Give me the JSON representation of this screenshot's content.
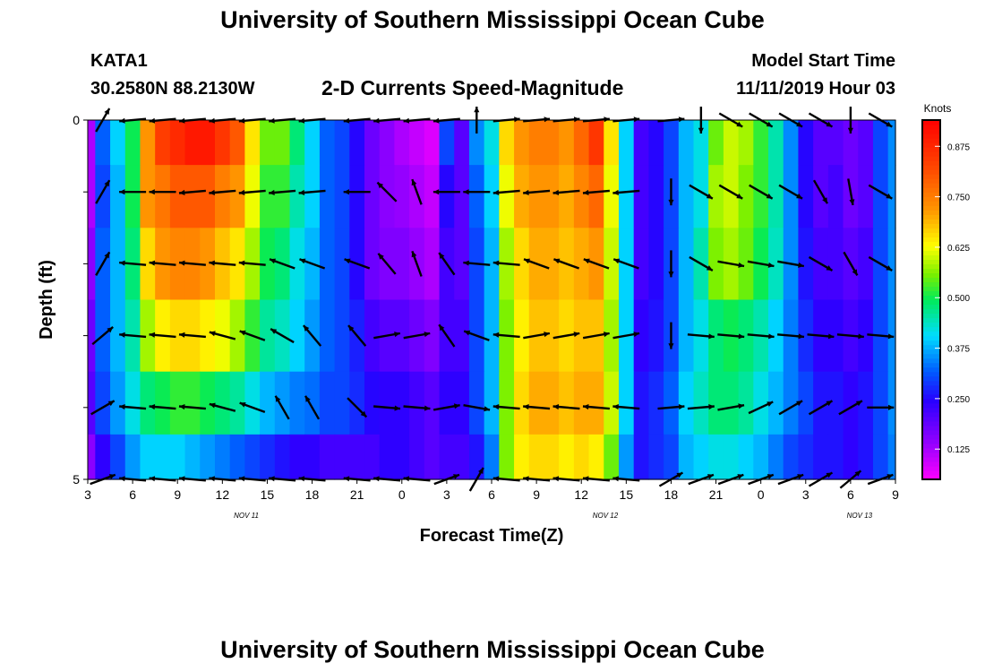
{
  "page": {
    "title_top": "University of Southern Mississippi Ocean Cube",
    "title_bottom": "University of Southern Mississippi Ocean Cube",
    "station_id": "KATA1",
    "station_coords": "30.2580N 88.2130W",
    "plot_title": "2-D Currents Speed-Magnitude",
    "model_start_label": "Model Start Time",
    "model_start_value": "11/11/2019 Hour 03"
  },
  "chart_data": {
    "type": "heatmap",
    "title": "2-D Currents Speed-Magnitude",
    "xlabel": "Forecast Time(Z)",
    "ylabel": "Depth (ft)",
    "x_tick_labels": [
      "3",
      "6",
      "9",
      "12",
      "15",
      "18",
      "21",
      "0",
      "3",
      "6",
      "9",
      "12",
      "15",
      "18",
      "21",
      "0",
      "3",
      "6",
      "9"
    ],
    "date_labels": [
      {
        "text": "NOV 11",
        "at_hour": 10
      },
      {
        "text": "NOV 12",
        "at_hour": 34
      },
      {
        "text": "NOV 13",
        "at_hour": 51
      }
    ],
    "x_range_hours": [
      0,
      54
    ],
    "y_range_ft": [
      0,
      5
    ],
    "y_tick_labels": [
      {
        "value": 0,
        "label": "0"
      },
      {
        "value": 1,
        "label": ""
      },
      {
        "value": 2,
        "label": ""
      },
      {
        "value": 3,
        "label": ""
      },
      {
        "value": 4,
        "label": ""
      },
      {
        "value": 5,
        "label": "5"
      }
    ],
    "colorbar": {
      "label": "Knots",
      "range": [
        0.05,
        0.94
      ],
      "ticks": [
        0.125,
        0.25,
        0.375,
        0.5,
        0.625,
        0.75,
        0.875
      ],
      "tick_labels": [
        "0.125",
        "0.250",
        "0.375",
        "0.500",
        "0.625",
        "0.750",
        "0.875"
      ]
    },
    "layer_depths_ft": [
      0.25,
      1.0,
      2.0,
      3.0,
      4.0,
      4.75
    ],
    "times_hours": [
      0,
      1,
      2,
      3,
      4,
      5,
      6,
      7,
      8,
      9,
      10,
      11,
      12,
      13,
      14,
      15,
      16,
      17,
      18,
      19,
      20,
      21,
      22,
      23,
      24,
      25,
      26,
      27,
      28,
      29,
      30,
      31,
      32,
      33,
      34,
      35,
      36,
      37,
      38,
      39,
      40,
      41,
      42,
      43,
      44,
      45,
      46,
      47,
      48,
      49,
      50,
      51,
      52,
      53,
      54
    ],
    "speed_knots": [
      [
        0.12,
        0.32,
        0.4,
        0.5,
        0.72,
        0.84,
        0.87,
        0.9,
        0.9,
        0.85,
        0.8,
        0.65,
        0.55,
        0.55,
        0.48,
        0.4,
        0.32,
        0.3,
        0.25,
        0.18,
        0.15,
        0.12,
        0.1,
        0.08,
        0.3,
        0.2,
        0.35,
        0.42,
        0.66,
        0.72,
        0.75,
        0.75,
        0.72,
        0.78,
        0.85,
        0.65,
        0.4,
        0.22,
        0.25,
        0.3,
        0.38,
        0.42,
        0.55,
        0.6,
        0.58,
        0.52,
        0.45,
        0.35,
        0.25,
        0.2,
        0.2,
        0.18,
        0.2,
        0.3,
        0.35
      ],
      [
        0.12,
        0.3,
        0.38,
        0.5,
        0.72,
        0.76,
        0.8,
        0.8,
        0.8,
        0.75,
        0.72,
        0.62,
        0.52,
        0.52,
        0.45,
        0.4,
        0.32,
        0.3,
        0.25,
        0.18,
        0.15,
        0.14,
        0.12,
        0.1,
        0.25,
        0.2,
        0.32,
        0.4,
        0.62,
        0.7,
        0.72,
        0.72,
        0.7,
        0.74,
        0.78,
        0.62,
        0.4,
        0.22,
        0.25,
        0.3,
        0.38,
        0.42,
        0.58,
        0.6,
        0.56,
        0.52,
        0.45,
        0.35,
        0.25,
        0.2,
        0.22,
        0.18,
        0.2,
        0.3,
        0.35
      ],
      [
        0.15,
        0.32,
        0.38,
        0.48,
        0.66,
        0.72,
        0.74,
        0.74,
        0.72,
        0.68,
        0.65,
        0.58,
        0.5,
        0.48,
        0.42,
        0.38,
        0.32,
        0.3,
        0.25,
        0.18,
        0.16,
        0.16,
        0.14,
        0.12,
        0.22,
        0.2,
        0.3,
        0.38,
        0.58,
        0.66,
        0.7,
        0.7,
        0.68,
        0.7,
        0.72,
        0.6,
        0.4,
        0.22,
        0.25,
        0.3,
        0.38,
        0.45,
        0.56,
        0.58,
        0.55,
        0.5,
        0.44,
        0.35,
        0.26,
        0.22,
        0.22,
        0.2,
        0.22,
        0.3,
        0.35
      ],
      [
        0.18,
        0.32,
        0.38,
        0.45,
        0.58,
        0.64,
        0.66,
        0.66,
        0.64,
        0.62,
        0.58,
        0.52,
        0.46,
        0.44,
        0.4,
        0.36,
        0.32,
        0.3,
        0.27,
        0.22,
        0.2,
        0.2,
        0.18,
        0.16,
        0.22,
        0.22,
        0.3,
        0.38,
        0.56,
        0.64,
        0.68,
        0.68,
        0.66,
        0.68,
        0.68,
        0.58,
        0.4,
        0.24,
        0.26,
        0.3,
        0.38,
        0.42,
        0.48,
        0.5,
        0.48,
        0.45,
        0.4,
        0.34,
        0.28,
        0.24,
        0.24,
        0.22,
        0.24,
        0.3,
        0.35
      ],
      [
        0.2,
        0.3,
        0.36,
        0.42,
        0.48,
        0.5,
        0.52,
        0.52,
        0.5,
        0.48,
        0.46,
        0.42,
        0.38,
        0.36,
        0.34,
        0.33,
        0.3,
        0.3,
        0.28,
        0.25,
        0.24,
        0.24,
        0.22,
        0.2,
        0.24,
        0.24,
        0.3,
        0.38,
        0.56,
        0.66,
        0.7,
        0.7,
        0.68,
        0.7,
        0.7,
        0.6,
        0.4,
        0.26,
        0.28,
        0.32,
        0.4,
        0.44,
        0.48,
        0.48,
        0.46,
        0.42,
        0.38,
        0.34,
        0.3,
        0.26,
        0.26,
        0.24,
        0.26,
        0.3,
        0.35
      ],
      [
        0.15,
        0.24,
        0.3,
        0.36,
        0.4,
        0.4,
        0.4,
        0.38,
        0.36,
        0.34,
        0.32,
        0.3,
        0.28,
        0.26,
        0.24,
        0.24,
        0.22,
        0.22,
        0.22,
        0.22,
        0.24,
        0.24,
        0.22,
        0.2,
        0.22,
        0.22,
        0.26,
        0.34,
        0.56,
        0.64,
        0.66,
        0.66,
        0.64,
        0.66,
        0.64,
        0.55,
        0.36,
        0.26,
        0.28,
        0.3,
        0.38,
        0.4,
        0.42,
        0.42,
        0.4,
        0.38,
        0.34,
        0.3,
        0.28,
        0.26,
        0.26,
        0.24,
        0.26,
        0.3,
        0.34
      ]
    ],
    "vector_times_hours": [
      1,
      3,
      5,
      7,
      9,
      11,
      13,
      15,
      18,
      20,
      22,
      24,
      26,
      28,
      30,
      32,
      34,
      36,
      39,
      41,
      43,
      45,
      47,
      49,
      51,
      53
    ],
    "vector_depths_ft": [
      0,
      1,
      2,
      3,
      4,
      5
    ],
    "vector_directions_deg": [
      [
        60,
        185,
        185,
        185,
        185,
        185,
        185,
        185,
        185,
        185,
        185,
        185,
        90,
        5,
        5,
        5,
        5,
        5,
        5,
        -90,
        -30,
        -30,
        -30,
        -30,
        -90,
        -30
      ],
      [
        60,
        180,
        180,
        185,
        185,
        185,
        185,
        185,
        180,
        135,
        110,
        180,
        180,
        185,
        185,
        185,
        185,
        185,
        -90,
        -30,
        -30,
        -30,
        -30,
        -60,
        -80,
        -30
      ],
      [
        60,
        175,
        175,
        175,
        175,
        175,
        160,
        160,
        160,
        130,
        110,
        125,
        175,
        175,
        160,
        160,
        160,
        160,
        -90,
        -30,
        -10,
        -10,
        -10,
        -30,
        -60,
        -30
      ],
      [
        40,
        175,
        175,
        175,
        165,
        160,
        150,
        130,
        130,
        10,
        10,
        125,
        160,
        175,
        10,
        10,
        10,
        10,
        -90,
        -5,
        -5,
        -5,
        -5,
        -5,
        -5,
        -5
      ],
      [
        30,
        175,
        175,
        175,
        165,
        160,
        120,
        120,
        -45,
        -5,
        -5,
        10,
        -10,
        175,
        175,
        175,
        175,
        175,
        5,
        5,
        10,
        25,
        30,
        30,
        30,
        0
      ],
      [
        20,
        175,
        175,
        175,
        175,
        175,
        175,
        175,
        175,
        175,
        175,
        20,
        60,
        175,
        175,
        175,
        175,
        175,
        30,
        20,
        20,
        20,
        20,
        30,
        40,
        20
      ]
    ]
  }
}
